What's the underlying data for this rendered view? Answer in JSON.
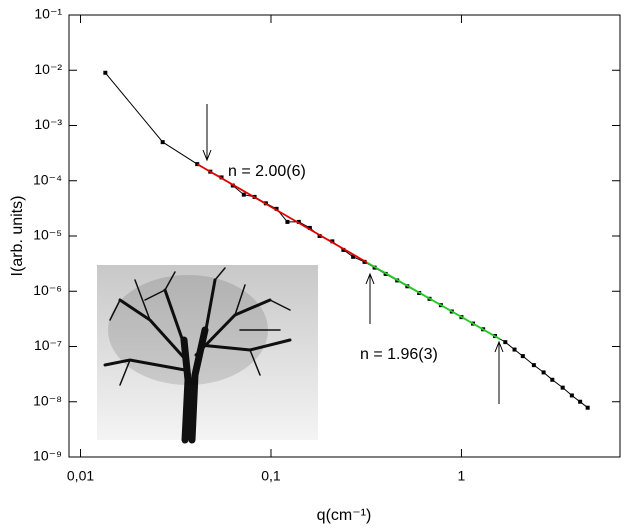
{
  "chart_data": {
    "type": "scatter",
    "x_label": "q(cm⁻¹)",
    "y_label": "I(arb. units)",
    "log_x": true,
    "log_y": true,
    "xlim": [
      0.0087,
      6.8
    ],
    "ylim": [
      1e-09,
      0.1
    ],
    "xticks": [
      {
        "value": 0.01,
        "label": "0,01"
      },
      {
        "value": 0.1,
        "label": "0,1"
      },
      1
    ],
    "yticks": [
      {
        "value": 1e-09,
        "label": "10⁻⁹"
      },
      {
        "value": 1e-08,
        "label": "10⁻⁸"
      },
      {
        "value": 1e-07,
        "label": "10⁻⁷"
      },
      {
        "value": 1e-06,
        "label": "10⁻⁶"
      },
      {
        "value": 1e-05,
        "label": "10⁻⁵"
      },
      {
        "value": 0.0001,
        "label": "10⁻⁴"
      },
      {
        "value": 0.001,
        "label": "10⁻³"
      },
      {
        "value": 0.01,
        "label": "10⁻²"
      },
      {
        "value": 0.1,
        "label": "10⁻¹"
      }
    ],
    "series": [
      {
        "color": "#000000",
        "x": [
          0.0135,
          0.027,
          0.041,
          0.048,
          0.055,
          0.063,
          0.072,
          0.082,
          0.094,
          0.107,
          0.122,
          0.14,
          0.16,
          0.18,
          0.21,
          0.24,
          0.27,
          0.31,
          0.35,
          0.4,
          0.46,
          0.52,
          0.6,
          0.68,
          0.78,
          0.89,
          1.0,
          1.15,
          1.3,
          1.5,
          1.7,
          1.9,
          2.1,
          2.4,
          2.7,
          3.0,
          3.4,
          3.8,
          4.2,
          4.6
        ],
        "values": [
          0.009,
          0.0005,
          0.0002,
          0.000146,
          0.000115,
          8.2e-05,
          5.6e-05,
          5.1e-05,
          3.9e-05,
          3.1e-05,
          1.8e-05,
          1.8e-05,
          1.4e-05,
          1e-05,
          8e-06,
          5.6e-06,
          4.2e-06,
          3.4e-06,
          2.68e-06,
          2.06e-06,
          1.57e-06,
          1.23e-06,
          9.3e-07,
          7.3e-07,
          5.6e-07,
          4.3e-07,
          3.4e-07,
          2.6e-07,
          2.05e-07,
          1.55e-07,
          1.2e-07,
          8.8e-08,
          6.7e-08,
          4.6e-08,
          3.4e-08,
          2.5e-08,
          1.8e-08,
          1.3e-08,
          1e-08,
          7.8e-09
        ]
      },
      {
        "color": "#e00000",
        "x": [
          0.041,
          0.32
        ],
        "values": [
          0.0002,
          3.3e-06
        ]
      },
      {
        "color": "#22cc22",
        "x": [
          0.32,
          1.6
        ],
        "values": [
          3.3e-06,
          1.35e-07
        ]
      }
    ],
    "annotations": [
      "n = 2.00(6)",
      "n = 1.96(3)"
    ]
  }
}
